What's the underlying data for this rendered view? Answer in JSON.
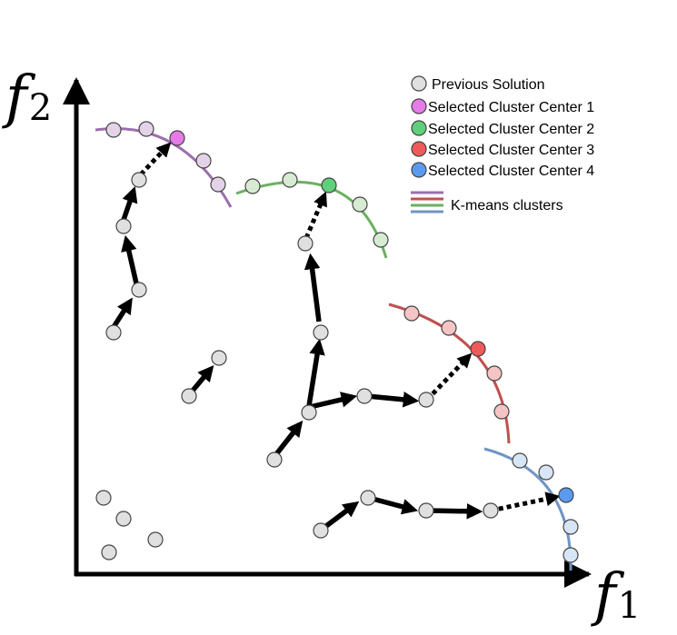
{
  "axes": {
    "x_label": "f",
    "x_sub": "1",
    "y_label": "f",
    "y_sub": "2"
  },
  "legend": {
    "entries": [
      {
        "label": "Previous Solution",
        "color": "#e0e0e0",
        "kind": "dot"
      },
      {
        "label": "Selected  Cluster Center 1",
        "color": "#e57be6",
        "kind": "dot"
      },
      {
        "label": "Selected  Cluster Center 2",
        "color": "#5fd07a",
        "kind": "dot"
      },
      {
        "label": "Selected  Cluster Center 3",
        "color": "#ee5a5a",
        "kind": "dot"
      },
      {
        "label": "Selected  Cluster Center 4",
        "color": "#5b9bef",
        "kind": "dot"
      }
    ],
    "clusters_label": "K-means clusters",
    "cluster_line_colors": [
      "#9b6fae",
      "#c05050",
      "#6cb061",
      "#6f95c2"
    ]
  },
  "colors": {
    "previous": "#e0e0e0",
    "cluster1_line": "#9b6fae",
    "cluster1_fill": "#e4d3e8",
    "cluster1_center": "#e57be6",
    "cluster2_line": "#6cb061",
    "cluster2_fill": "#d7ebd3",
    "cluster2_center": "#5fd07a",
    "cluster3_line": "#c05050",
    "cluster3_fill": "#f5c4c4",
    "cluster3_center": "#ee5a5a",
    "cluster4_line": "#6f95c2",
    "cluster4_fill": "#d6e6f6",
    "cluster4_center": "#5b9bef"
  }
}
